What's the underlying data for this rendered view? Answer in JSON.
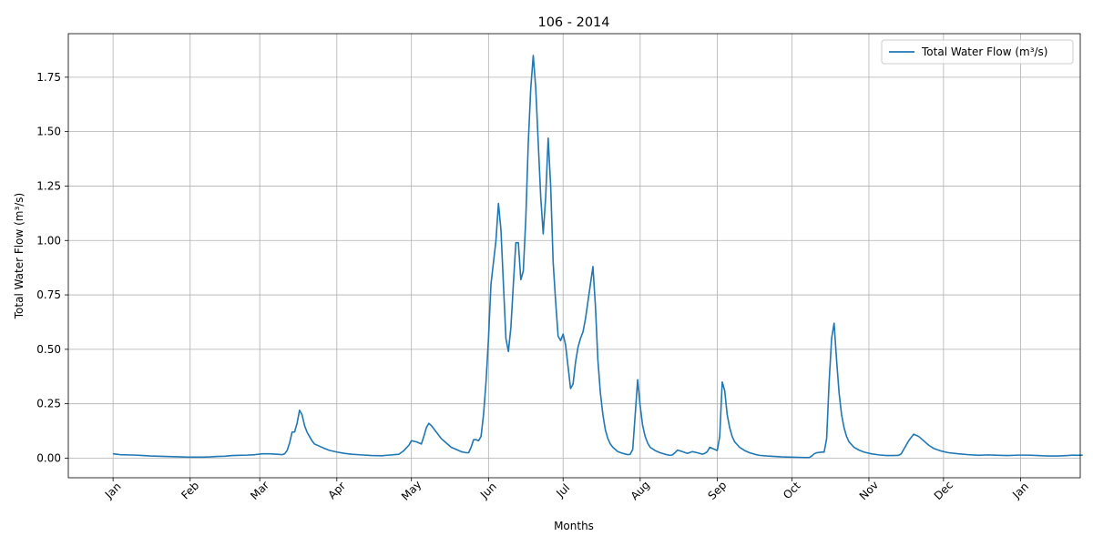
{
  "chart_data": {
    "type": "line",
    "title": "106 - 2014",
    "xlabel": "Months",
    "ylabel": "Total Water Flow (m³/s)",
    "ylim": [
      -0.09,
      1.95
    ],
    "xlim": [
      -18,
      389
    ],
    "grid": true,
    "legend_position": "top-right",
    "x_ticks": [
      {
        "label": "Jan",
        "day": 0
      },
      {
        "label": "Feb",
        "day": 31
      },
      {
        "label": "Mar",
        "day": 59
      },
      {
        "label": "Apr",
        "day": 90
      },
      {
        "label": "May",
        "day": 120
      },
      {
        "label": "Jun",
        "day": 151
      },
      {
        "label": "Jul",
        "day": 181
      },
      {
        "label": "Aug",
        "day": 212
      },
      {
        "label": "Sep",
        "day": 243
      },
      {
        "label": "Oct",
        "day": 273
      },
      {
        "label": "Nov",
        "day": 304
      },
      {
        "label": "Dec",
        "day": 334
      },
      {
        "label": "Jan",
        "day": 365
      }
    ],
    "y_ticks": [
      0.0,
      0.25,
      0.5,
      0.75,
      1.0,
      1.25,
      1.5,
      1.75
    ],
    "y_tick_labels": [
      "0.00",
      "0.25",
      "0.50",
      "0.75",
      "1.00",
      "1.25",
      "1.50",
      "1.75"
    ],
    "series": [
      {
        "name": "Total Water Flow (m³/s)",
        "color": "#1f77b4",
        "points": [
          [
            0,
            0.02
          ],
          [
            3,
            0.016
          ],
          [
            6,
            0.015
          ],
          [
            9,
            0.014
          ],
          [
            12,
            0.012
          ],
          [
            15,
            0.01
          ],
          [
            18,
            0.009
          ],
          [
            21,
            0.008
          ],
          [
            24,
            0.007
          ],
          [
            27,
            0.006
          ],
          [
            30,
            0.005
          ],
          [
            33,
            0.005
          ],
          [
            36,
            0.005
          ],
          [
            39,
            0.006
          ],
          [
            42,
            0.008
          ],
          [
            45,
            0.009
          ],
          [
            48,
            0.012
          ],
          [
            51,
            0.013
          ],
          [
            54,
            0.014
          ],
          [
            57,
            0.016
          ],
          [
            60,
            0.02
          ],
          [
            63,
            0.02
          ],
          [
            66,
            0.018
          ],
          [
            68,
            0.016
          ],
          [
            69,
            0.02
          ],
          [
            70,
            0.035
          ],
          [
            71,
            0.07
          ],
          [
            72,
            0.12
          ],
          [
            73,
            0.12
          ],
          [
            74,
            0.16
          ],
          [
            75,
            0.22
          ],
          [
            76,
            0.2
          ],
          [
            77,
            0.15
          ],
          [
            78,
            0.12
          ],
          [
            79,
            0.1
          ],
          [
            80,
            0.08
          ],
          [
            81,
            0.065
          ],
          [
            83,
            0.055
          ],
          [
            85,
            0.045
          ],
          [
            87,
            0.036
          ],
          [
            90,
            0.028
          ],
          [
            93,
            0.022
          ],
          [
            96,
            0.018
          ],
          [
            100,
            0.015
          ],
          [
            104,
            0.012
          ],
          [
            108,
            0.011
          ],
          [
            112,
            0.015
          ],
          [
            115,
            0.018
          ],
          [
            117,
            0.035
          ],
          [
            119,
            0.06
          ],
          [
            120,
            0.08
          ],
          [
            122,
            0.075
          ],
          [
            124,
            0.065
          ],
          [
            125,
            0.1
          ],
          [
            126,
            0.14
          ],
          [
            127,
            0.16
          ],
          [
            128,
            0.15
          ],
          [
            130,
            0.12
          ],
          [
            132,
            0.09
          ],
          [
            134,
            0.07
          ],
          [
            136,
            0.05
          ],
          [
            138,
            0.04
          ],
          [
            140,
            0.03
          ],
          [
            142,
            0.025
          ],
          [
            143,
            0.025
          ],
          [
            144,
            0.05
          ],
          [
            145,
            0.085
          ],
          [
            146,
            0.085
          ],
          [
            147,
            0.08
          ],
          [
            148,
            0.1
          ],
          [
            149,
            0.2
          ],
          [
            150,
            0.35
          ],
          [
            151,
            0.55
          ],
          [
            152,
            0.8
          ],
          [
            153,
            0.9
          ],
          [
            154,
            1.0
          ],
          [
            155,
            1.17
          ],
          [
            156,
            1.05
          ],
          [
            157,
            0.8
          ],
          [
            158,
            0.55
          ],
          [
            159,
            0.49
          ],
          [
            160,
            0.6
          ],
          [
            161,
            0.8
          ],
          [
            162,
            0.99
          ],
          [
            163,
            0.99
          ],
          [
            164,
            0.82
          ],
          [
            165,
            0.86
          ],
          [
            166,
            1.1
          ],
          [
            167,
            1.45
          ],
          [
            168,
            1.7
          ],
          [
            169,
            1.85
          ],
          [
            170,
            1.7
          ],
          [
            171,
            1.45
          ],
          [
            172,
            1.2
          ],
          [
            173,
            1.03
          ],
          [
            174,
            1.2
          ],
          [
            175,
            1.47
          ],
          [
            176,
            1.25
          ],
          [
            177,
            0.9
          ],
          [
            178,
            0.72
          ],
          [
            179,
            0.56
          ],
          [
            180,
            0.54
          ],
          [
            181,
            0.57
          ],
          [
            182,
            0.52
          ],
          [
            183,
            0.42
          ],
          [
            184,
            0.32
          ],
          [
            185,
            0.34
          ],
          [
            186,
            0.44
          ],
          [
            187,
            0.51
          ],
          [
            188,
            0.55
          ],
          [
            189,
            0.58
          ],
          [
            190,
            0.64
          ],
          [
            191,
            0.72
          ],
          [
            192,
            0.8
          ],
          [
            193,
            0.88
          ],
          [
            194,
            0.7
          ],
          [
            195,
            0.45
          ],
          [
            196,
            0.3
          ],
          [
            197,
            0.2
          ],
          [
            198,
            0.13
          ],
          [
            199,
            0.09
          ],
          [
            200,
            0.065
          ],
          [
            201,
            0.05
          ],
          [
            202,
            0.04
          ],
          [
            203,
            0.03
          ],
          [
            205,
            0.022
          ],
          [
            207,
            0.016
          ],
          [
            208,
            0.018
          ],
          [
            209,
            0.04
          ],
          [
            210,
            0.2
          ],
          [
            211,
            0.36
          ],
          [
            212,
            0.24
          ],
          [
            213,
            0.15
          ],
          [
            214,
            0.1
          ],
          [
            215,
            0.07
          ],
          [
            216,
            0.05
          ],
          [
            218,
            0.035
          ],
          [
            220,
            0.025
          ],
          [
            222,
            0.018
          ],
          [
            224,
            0.013
          ],
          [
            225,
            0.015
          ],
          [
            226,
            0.025
          ],
          [
            227,
            0.037
          ],
          [
            229,
            0.03
          ],
          [
            231,
            0.022
          ],
          [
            233,
            0.03
          ],
          [
            235,
            0.025
          ],
          [
            237,
            0.018
          ],
          [
            238,
            0.022
          ],
          [
            239,
            0.03
          ],
          [
            240,
            0.05
          ],
          [
            241,
            0.045
          ],
          [
            242,
            0.04
          ],
          [
            243,
            0.035
          ],
          [
            244,
            0.1
          ],
          [
            245,
            0.35
          ],
          [
            246,
            0.31
          ],
          [
            247,
            0.2
          ],
          [
            248,
            0.14
          ],
          [
            249,
            0.1
          ],
          [
            250,
            0.075
          ],
          [
            252,
            0.05
          ],
          [
            254,
            0.035
          ],
          [
            256,
            0.025
          ],
          [
            258,
            0.018
          ],
          [
            260,
            0.013
          ],
          [
            263,
            0.01
          ],
          [
            266,
            0.008
          ],
          [
            269,
            0.006
          ],
          [
            272,
            0.005
          ],
          [
            275,
            0.004
          ],
          [
            278,
            0.003
          ],
          [
            280,
            0.003
          ],
          [
            281,
            0.01
          ],
          [
            282,
            0.02
          ],
          [
            283,
            0.025
          ],
          [
            285,
            0.028
          ],
          [
            286,
            0.028
          ],
          [
            287,
            0.09
          ],
          [
            288,
            0.35
          ],
          [
            289,
            0.55
          ],
          [
            290,
            0.62
          ],
          [
            291,
            0.45
          ],
          [
            292,
            0.3
          ],
          [
            293,
            0.2
          ],
          [
            294,
            0.14
          ],
          [
            295,
            0.1
          ],
          [
            296,
            0.075
          ],
          [
            298,
            0.05
          ],
          [
            300,
            0.037
          ],
          [
            302,
            0.028
          ],
          [
            305,
            0.02
          ],
          [
            308,
            0.015
          ],
          [
            311,
            0.012
          ],
          [
            314,
            0.012
          ],
          [
            316,
            0.013
          ],
          [
            317,
            0.02
          ],
          [
            318,
            0.04
          ],
          [
            320,
            0.08
          ],
          [
            322,
            0.11
          ],
          [
            324,
            0.1
          ],
          [
            326,
            0.08
          ],
          [
            328,
            0.06
          ],
          [
            330,
            0.045
          ],
          [
            333,
            0.033
          ],
          [
            336,
            0.025
          ],
          [
            340,
            0.02
          ],
          [
            344,
            0.016
          ],
          [
            348,
            0.013
          ],
          [
            352,
            0.015
          ],
          [
            356,
            0.013
          ],
          [
            360,
            0.012
          ],
          [
            364,
            0.014
          ],
          [
            368,
            0.014
          ],
          [
            372,
            0.012
          ],
          [
            376,
            0.01
          ],
          [
            380,
            0.01
          ],
          [
            384,
            0.012
          ],
          [
            386,
            0.014
          ],
          [
            388,
            0.013
          ],
          [
            390,
            0.014
          ]
        ]
      }
    ]
  }
}
